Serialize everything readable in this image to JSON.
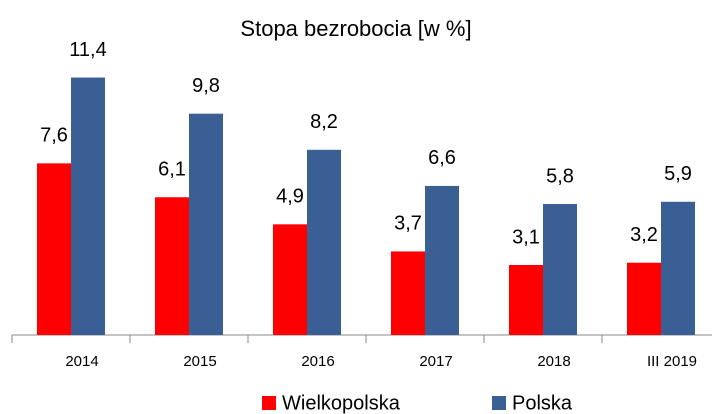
{
  "chart_data": {
    "type": "bar",
    "title": "Stopa bezrobocia [w %]",
    "categories": [
      "2014",
      "2015",
      "2016",
      "2017",
      "2018",
      "III 2019"
    ],
    "series": [
      {
        "name": "Wielkopolska",
        "color": "#ff0000",
        "values": [
          7.6,
          6.1,
          4.9,
          3.7,
          3.1,
          3.2
        ],
        "value_labels": [
          "7,6",
          "6,1",
          "4,9",
          "3,7",
          "3,1",
          "3,2"
        ]
      },
      {
        "name": "Polska",
        "color": "#3a5f94",
        "values": [
          11.4,
          9.8,
          8.2,
          6.6,
          5.8,
          5.9
        ],
        "value_labels": [
          "11,4",
          "9,8",
          "8,2",
          "6,6",
          "5,8",
          "5,9"
        ]
      }
    ],
    "ylim": [
      0,
      12
    ],
    "legend": "bottom"
  }
}
